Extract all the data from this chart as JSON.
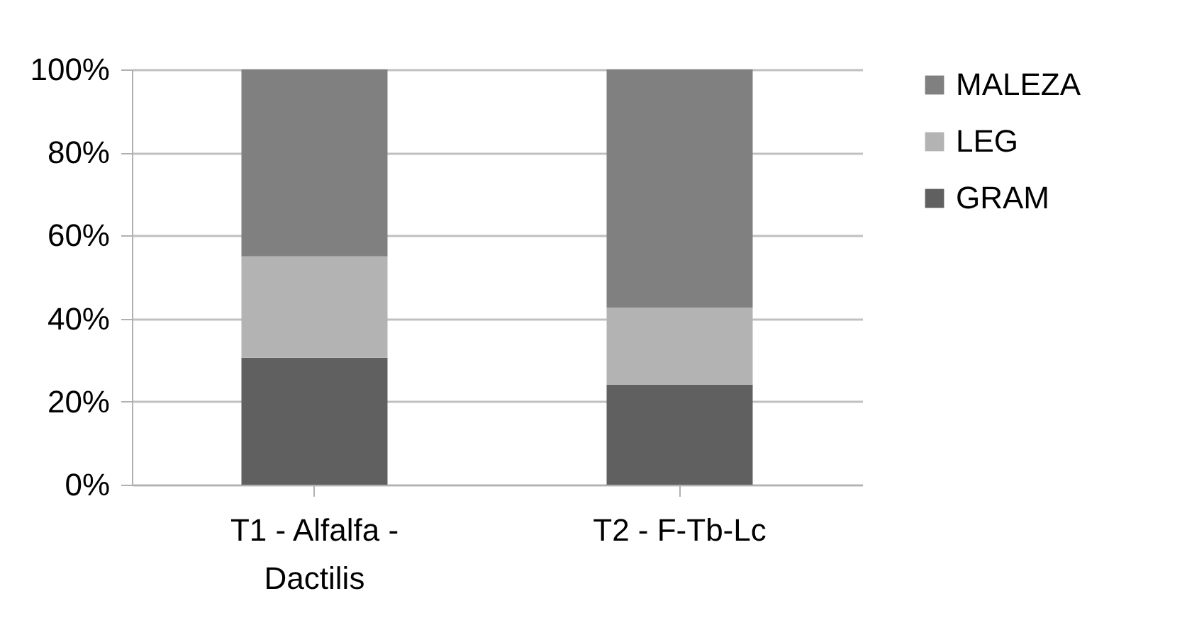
{
  "chart_data": {
    "type": "bar",
    "stacked": true,
    "categories": [
      "T1 - Alfalfa - Dactilis",
      "T2 - F-Tb-Lc"
    ],
    "series": [
      {
        "name": "GRAM",
        "color": "#606060",
        "values": [
          30.6,
          24.1
        ]
      },
      {
        "name": "LEG",
        "color": "#b3b3b3",
        "values": [
          24.4,
          18.5
        ]
      },
      {
        "name": "MALEZA",
        "color": "#808080",
        "values": [
          45.0,
          57.4
        ]
      }
    ],
    "ylim": [
      0,
      100
    ],
    "yticks": [
      {
        "value": 0,
        "label": "0%"
      },
      {
        "value": 20,
        "label": "20%"
      },
      {
        "value": 40,
        "label": "40%"
      },
      {
        "value": 60,
        "label": "60%"
      },
      {
        "value": 80,
        "label": "80%"
      },
      {
        "value": 100,
        "label": "100%"
      }
    ],
    "grid": "y",
    "legend": "right"
  }
}
